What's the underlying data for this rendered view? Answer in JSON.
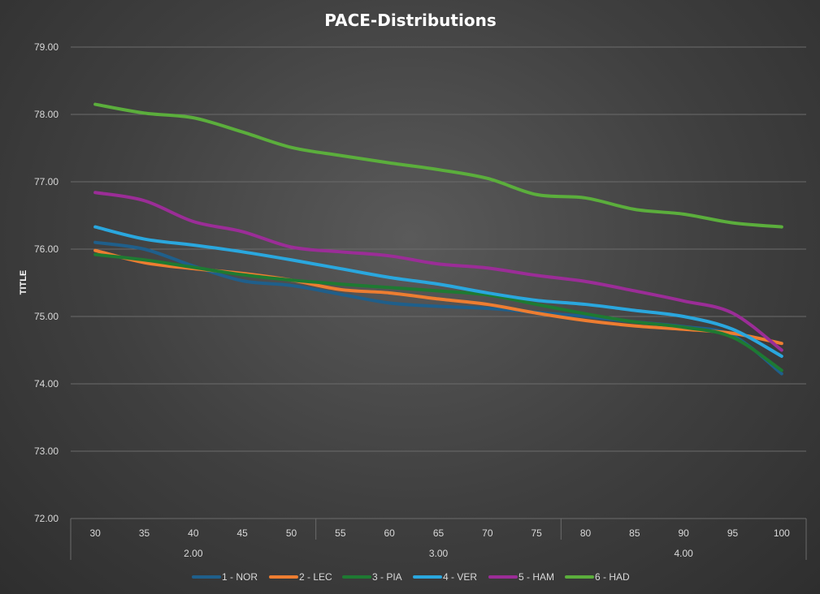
{
  "chart_data": {
    "type": "line",
    "title": "PACE-Distributions",
    "ylabel": "TITLE",
    "xlabel": "",
    "ylim": [
      72,
      79
    ],
    "yticks": [
      "72.00",
      "73.00",
      "74.00",
      "75.00",
      "76.00",
      "77.00",
      "78.00",
      "79.00"
    ],
    "categories": [
      "30",
      "35",
      "40",
      "45",
      "50",
      "55",
      "60",
      "65",
      "70",
      "75",
      "80",
      "85",
      "90",
      "95",
      "100"
    ],
    "groups": [
      {
        "label": "2.00",
        "count": 5
      },
      {
        "label": "3.00",
        "count": 5
      },
      {
        "label": "4.00",
        "count": 5
      }
    ],
    "grid": true,
    "legend_position": "bottom",
    "series": [
      {
        "name": "1 - NOR",
        "color": "#1f5f8b",
        "values": [
          76.1,
          76.0,
          75.75,
          75.53,
          75.46,
          75.33,
          75.2,
          75.15,
          75.12,
          75.06,
          75.0,
          74.92,
          74.85,
          74.72,
          74.15
        ]
      },
      {
        "name": "2 - LEC",
        "color": "#ed7d31",
        "values": [
          75.98,
          75.8,
          75.71,
          75.64,
          75.54,
          75.4,
          75.35,
          75.26,
          75.18,
          75.05,
          74.94,
          74.86,
          74.81,
          74.75,
          74.6
        ]
      },
      {
        "name": "3 - PIA",
        "color": "#1e7a32",
        "values": [
          75.92,
          75.84,
          75.73,
          75.62,
          75.54,
          75.48,
          75.43,
          75.38,
          75.32,
          75.18,
          75.04,
          74.92,
          74.84,
          74.69,
          74.2
        ]
      },
      {
        "name": "4 - VER",
        "color": "#2aa7de",
        "values": [
          76.33,
          76.15,
          76.06,
          75.96,
          75.84,
          75.71,
          75.58,
          75.48,
          75.35,
          75.24,
          75.18,
          75.09,
          75.0,
          74.81,
          74.41
        ]
      },
      {
        "name": "5 - HAM",
        "color": "#9b2d97",
        "values": [
          76.84,
          76.72,
          76.41,
          76.26,
          76.03,
          75.96,
          75.9,
          75.78,
          75.72,
          75.61,
          75.52,
          75.38,
          75.23,
          75.05,
          74.5
        ]
      },
      {
        "name": "6 - HAD",
        "color": "#5bae3c",
        "values": [
          78.15,
          78.02,
          77.95,
          77.74,
          77.51,
          77.39,
          77.28,
          77.18,
          77.05,
          76.81,
          76.76,
          76.59,
          76.52,
          76.39,
          76.33
        ]
      }
    ]
  }
}
